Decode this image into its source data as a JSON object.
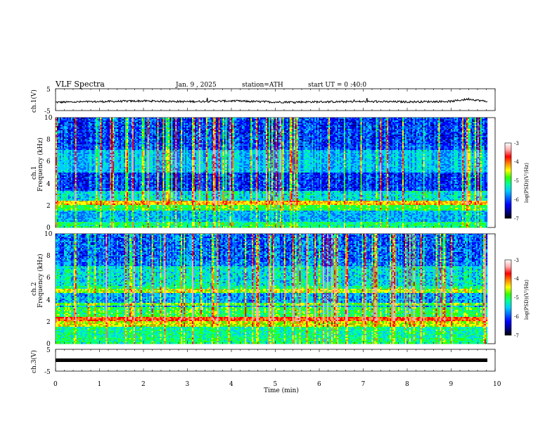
{
  "header": {
    "title": "VLF Spectra",
    "date": "Jan. 9 , 2025",
    "station": "station=ATH",
    "start": "start UT = 0 :40:0"
  },
  "colors": {
    "colormap": [
      "#000000",
      "#00008b",
      "#0000ff",
      "#0066ff",
      "#00ccff",
      "#00ff99",
      "#33ff00",
      "#ffff00",
      "#ff8800",
      "#ff0000",
      "#ffaaaa",
      "#ffffff"
    ]
  },
  "chart_data": [
    {
      "type": "line",
      "id": "ch1",
      "ylabel": "ch.1(V)",
      "ylim": [
        -5,
        5
      ],
      "y_ticks": [
        "5",
        "-5"
      ],
      "x_range": [
        0,
        10
      ],
      "data_extent_min": 9.82,
      "mean_level": -0.9,
      "note_values": [
        {
          "x": 0.0,
          "y": -1.2
        },
        {
          "x": 1.0,
          "y": -0.9
        },
        {
          "x": 2.0,
          "y": -0.6
        },
        {
          "x": 3.0,
          "y": -0.9
        },
        {
          "x": 4.0,
          "y": -0.6
        },
        {
          "x": 5.0,
          "y": -1.1
        },
        {
          "x": 6.0,
          "y": -1.0
        },
        {
          "x": 7.0,
          "y": -0.9
        },
        {
          "x": 8.0,
          "y": -1.0
        },
        {
          "x": 9.0,
          "y": -0.8
        },
        {
          "x": 9.4,
          "y": 0.3
        },
        {
          "x": 9.8,
          "y": -0.8
        }
      ]
    },
    {
      "type": "heatmap",
      "id": "ch1-spectrogram",
      "channel_label": "ch.1",
      "ylabel": "Frequency (kHz)",
      "ylim": [
        0,
        10
      ],
      "y_ticks": [
        "0",
        "2",
        "4",
        "6",
        "8",
        "10"
      ],
      "x_range": [
        0,
        10
      ],
      "colorbar": {
        "label": "log(PSD)(V²/Hz)",
        "range": [
          -7,
          -3
        ],
        "ticks": [
          "-3",
          "-4",
          "-5",
          "-6",
          "-7"
        ]
      }
    },
    {
      "type": "heatmap",
      "id": "ch2-spectrogram",
      "channel_label": "ch.2",
      "ylabel": "Frequency (kHz)",
      "ylim": [
        0,
        10
      ],
      "y_ticks": [
        "0",
        "2",
        "4",
        "6",
        "8",
        "10"
      ],
      "x_range": [
        0,
        10
      ],
      "colorbar": {
        "label": "log(PSD)(V²/Hz)",
        "range": [
          -7,
          -3
        ],
        "ticks": [
          "-3",
          "-4",
          "-5",
          "-6",
          "-7"
        ]
      }
    },
    {
      "type": "line",
      "id": "ch3",
      "ylabel": "ch.3(V)",
      "ylim": [
        -5,
        5
      ],
      "y_ticks": [
        "5",
        "-5"
      ],
      "x_range": [
        0,
        10
      ],
      "mean_level": -1.5,
      "xlabel": "Time (min)",
      "x_ticks": [
        "0",
        "1",
        "2",
        "3",
        "4",
        "5",
        "6",
        "7",
        "8",
        "9",
        "10"
      ]
    }
  ]
}
